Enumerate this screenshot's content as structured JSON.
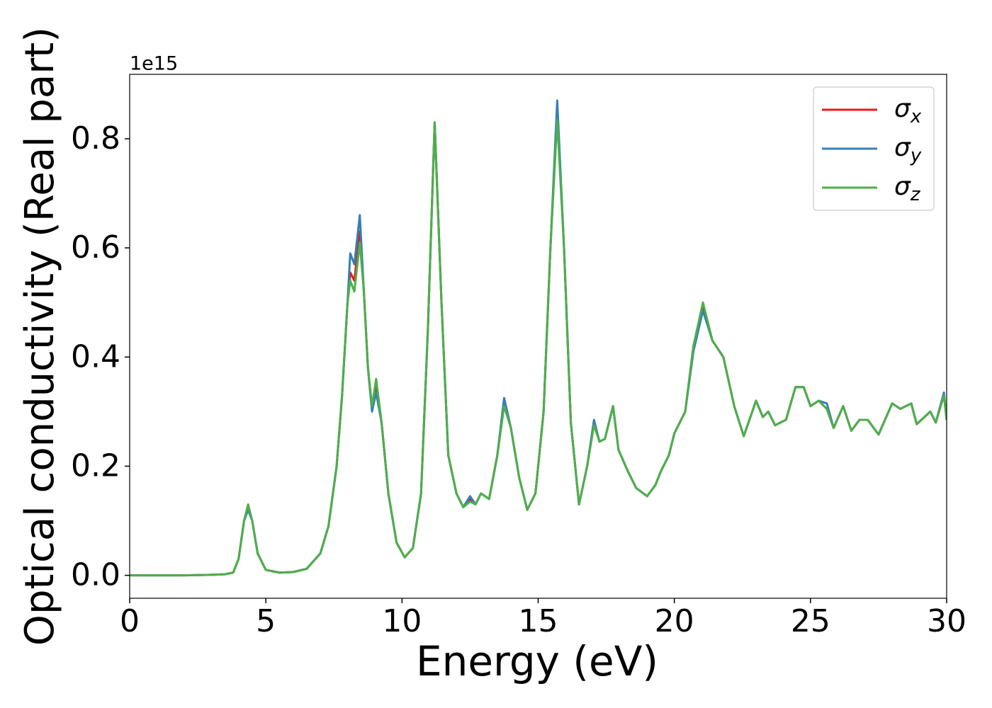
{
  "chart_data": {
    "type": "line",
    "xlabel": "Energy (eV)",
    "ylabel": "Optical conductivity (Real part)",
    "y_offset_label": "1e15",
    "xlim": [
      0,
      30
    ],
    "xticks": [
      0,
      5,
      10,
      15,
      20,
      25,
      30
    ],
    "ylim": [
      -0.042,
      0.918
    ],
    "yticks": [
      {
        "value": 0,
        "label": "0.0"
      },
      {
        "value": 0.2,
        "label": "0.2"
      },
      {
        "value": 0.4,
        "label": "0.4"
      },
      {
        "value": 0.6,
        "label": "0.6"
      },
      {
        "value": 0.8,
        "label": "0.8"
      }
    ],
    "grid": false,
    "legend": "upper right",
    "x": [
      0,
      1,
      2,
      3,
      3.5,
      3.8,
      4.0,
      4.2,
      4.35,
      4.5,
      4.7,
      5.0,
      5.5,
      6.0,
      6.5,
      7.0,
      7.3,
      7.6,
      7.8,
      8.0,
      8.1,
      8.25,
      8.45,
      8.6,
      8.75,
      8.9,
      9.05,
      9.25,
      9.5,
      9.8,
      10.1,
      10.4,
      10.7,
      10.95,
      11.2,
      11.45,
      11.7,
      12.0,
      12.25,
      12.5,
      12.7,
      12.9,
      13.2,
      13.5,
      13.75,
      14.0,
      14.3,
      14.6,
      14.9,
      15.2,
      15.45,
      15.7,
      15.95,
      16.2,
      16.5,
      16.8,
      17.05,
      17.25,
      17.45,
      17.75,
      17.95,
      18.3,
      18.6,
      19.0,
      19.3,
      19.5,
      19.8,
      20.0,
      20.4,
      20.7,
      21.05,
      21.4,
      21.8,
      22.2,
      22.55,
      23.0,
      23.25,
      23.45,
      23.7,
      24.1,
      24.45,
      24.75,
      25.0,
      25.3,
      25.6,
      25.85,
      26.2,
      26.5,
      26.8,
      27.1,
      27.5,
      28.0,
      28.3,
      28.7,
      28.9,
      29.4,
      29.6,
      29.9,
      30
    ],
    "series": [
      {
        "name": "σx",
        "color": "#e41a1c",
        "values": [
          0,
          0,
          0,
          0.001,
          0.002,
          0.005,
          0.03,
          0.1,
          0.125,
          0.1,
          0.04,
          0.01,
          0.005,
          0.006,
          0.012,
          0.04,
          0.09,
          0.2,
          0.33,
          0.5,
          0.555,
          0.54,
          0.63,
          0.52,
          0.38,
          0.305,
          0.345,
          0.28,
          0.15,
          0.06,
          0.033,
          0.05,
          0.15,
          0.45,
          0.83,
          0.5,
          0.22,
          0.15,
          0.125,
          0.14,
          0.13,
          0.15,
          0.14,
          0.22,
          0.315,
          0.27,
          0.18,
          0.12,
          0.15,
          0.3,
          0.6,
          0.85,
          0.6,
          0.28,
          0.13,
          0.2,
          0.28,
          0.245,
          0.25,
          0.31,
          0.23,
          0.19,
          0.16,
          0.145,
          0.165,
          0.19,
          0.22,
          0.26,
          0.3,
          0.42,
          0.49,
          0.43,
          0.4,
          0.31,
          0.255,
          0.32,
          0.29,
          0.3,
          0.275,
          0.285,
          0.345,
          0.345,
          0.31,
          0.32,
          0.305,
          0.27,
          0.31,
          0.265,
          0.285,
          0.285,
          0.258,
          0.315,
          0.305,
          0.315,
          0.277,
          0.3,
          0.28,
          0.33,
          0.285
        ]
      },
      {
        "name": "σy",
        "color": "#377eb8",
        "values": [
          0,
          0,
          0,
          0.001,
          0.002,
          0.005,
          0.03,
          0.1,
          0.12,
          0.1,
          0.04,
          0.01,
          0.005,
          0.006,
          0.012,
          0.04,
          0.09,
          0.2,
          0.33,
          0.5,
          0.59,
          0.57,
          0.66,
          0.52,
          0.38,
          0.3,
          0.335,
          0.28,
          0.15,
          0.06,
          0.033,
          0.05,
          0.15,
          0.45,
          0.83,
          0.5,
          0.22,
          0.15,
          0.125,
          0.145,
          0.13,
          0.15,
          0.14,
          0.22,
          0.325,
          0.27,
          0.18,
          0.12,
          0.15,
          0.3,
          0.6,
          0.87,
          0.6,
          0.28,
          0.13,
          0.2,
          0.285,
          0.245,
          0.25,
          0.31,
          0.23,
          0.19,
          0.16,
          0.145,
          0.165,
          0.19,
          0.22,
          0.26,
          0.3,
          0.41,
          0.485,
          0.43,
          0.4,
          0.31,
          0.255,
          0.32,
          0.29,
          0.3,
          0.275,
          0.285,
          0.345,
          0.345,
          0.31,
          0.32,
          0.315,
          0.27,
          0.31,
          0.265,
          0.285,
          0.285,
          0.258,
          0.315,
          0.305,
          0.315,
          0.277,
          0.3,
          0.28,
          0.335,
          0.285
        ]
      },
      {
        "name": "σz",
        "color": "#4daf4a",
        "values": [
          0,
          0,
          0,
          0.001,
          0.002,
          0.005,
          0.03,
          0.1,
          0.13,
          0.1,
          0.04,
          0.01,
          0.005,
          0.006,
          0.012,
          0.04,
          0.09,
          0.2,
          0.33,
          0.5,
          0.54,
          0.52,
          0.61,
          0.52,
          0.38,
          0.31,
          0.36,
          0.28,
          0.15,
          0.06,
          0.033,
          0.05,
          0.15,
          0.45,
          0.83,
          0.5,
          0.22,
          0.15,
          0.125,
          0.135,
          0.13,
          0.15,
          0.14,
          0.22,
          0.31,
          0.27,
          0.18,
          0.12,
          0.15,
          0.3,
          0.6,
          0.835,
          0.6,
          0.28,
          0.13,
          0.2,
          0.275,
          0.245,
          0.25,
          0.31,
          0.23,
          0.19,
          0.16,
          0.145,
          0.165,
          0.19,
          0.22,
          0.26,
          0.3,
          0.42,
          0.5,
          0.43,
          0.4,
          0.31,
          0.255,
          0.32,
          0.29,
          0.3,
          0.275,
          0.285,
          0.345,
          0.345,
          0.31,
          0.32,
          0.305,
          0.27,
          0.31,
          0.265,
          0.285,
          0.285,
          0.258,
          0.315,
          0.305,
          0.315,
          0.277,
          0.3,
          0.28,
          0.33,
          0.285
        ]
      }
    ]
  }
}
